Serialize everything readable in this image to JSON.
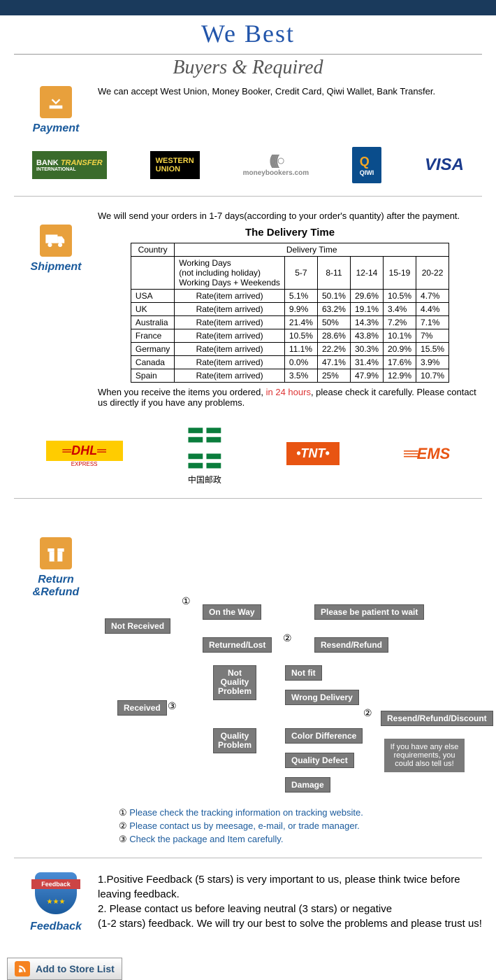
{
  "header": {
    "title": "We   Best",
    "subtitle": "Buyers & Required"
  },
  "payment": {
    "label": "Payment",
    "text": "We can accept West Union, Money Booker, Credit Card, Qiwi Wallet, Bank Transfer.",
    "logos": {
      "bank1": "BANK",
      "bank2": "TRANSFER",
      "bank3": "INTERNATIONAL",
      "wu1": "WESTERN",
      "wu2": "UNION",
      "mb": "moneybookers.com",
      "qiwi": "Q",
      "qiwi2": "QIWI",
      "visa": "VISA"
    }
  },
  "shipment": {
    "label": "Shipment",
    "intro": "We will send your orders in 1-7 days(according to your order's quantity) after the payment.",
    "table_title": "The Delivery Time",
    "headers": {
      "country": "Country",
      "dt": "Delivery Time"
    },
    "sub": {
      "wd1": "Working Days",
      "wd2": "(not including holiday)",
      "wd3": "Working Days + Weekends"
    },
    "cols": [
      "5-7",
      "8-11",
      "12-14",
      "15-19",
      "20-22"
    ],
    "rate_label": "Rate(item arrived)",
    "rows": [
      {
        "c": "USA",
        "v": [
          "5.1%",
          "50.1%",
          "29.6%",
          "10.5%",
          "4.7%"
        ]
      },
      {
        "c": "UK",
        "v": [
          "9.9%",
          "63.2%",
          "19.1%",
          "3.4%",
          "4.4%"
        ]
      },
      {
        "c": "Australia",
        "v": [
          "21.4%",
          "50%",
          "14.3%",
          "7.2%",
          "7.1%"
        ]
      },
      {
        "c": "France",
        "v": [
          "10.5%",
          "28.6%",
          "43.8%",
          "10.1%",
          "7%"
        ]
      },
      {
        "c": "Germany",
        "v": [
          "11.1%",
          "22.2%",
          "30.3%",
          "20.9%",
          "15.5%"
        ]
      },
      {
        "c": "Canada",
        "v": [
          "0.0%",
          "47.1%",
          "31.4%",
          "17.6%",
          "3.9%"
        ]
      },
      {
        "c": "Spain",
        "v": [
          "3.5%",
          "25%",
          "47.9%",
          "12.9%",
          "10.7%"
        ]
      }
    ],
    "note1": "When you receive the items you ordered, ",
    "note2": "in 24 hours",
    "note3": ", please check it carefully. Please contact us directly if you have any problems.",
    "carriers": {
      "dhl": "DHL",
      "dhl_sub": "EXPRESS",
      "cp": "中国邮政",
      "tnt": "TNT",
      "ems": "EMS"
    }
  },
  "return": {
    "label": "Return &Refund",
    "nodes": {
      "not_received": "Not Received",
      "received": "Received",
      "on_way": "On the Way",
      "returned": "Returned/Lost",
      "patient": "Please be patient to wait",
      "resend1": "Resend/Refund",
      "nqp1": "Not",
      "nqp2": "Quality",
      "nqp3": "Problem",
      "qp1": "Quality",
      "qp2": "Problem",
      "not_fit": "Not fit",
      "wrong": "Wrong Delivery",
      "color": "Color Difference",
      "defect": "Quality Defect",
      "damage": "Damage",
      "rrd": "Resend/Refund/Discount",
      "speech": "If you have any else requirements, you could also tell us!",
      "n1": "①",
      "n2": "②",
      "n3": "③"
    },
    "legend": {
      "l1a": "① ",
      "l1b": "Please check the tracking information on tracking website.",
      "l2a": "② ",
      "l2b": "Please contact us by meesage, e-mail, or trade manager.",
      "l3a": "③ ",
      "l3b": "Check the package and Item carefully."
    }
  },
  "feedback": {
    "label": "Feedback",
    "badge": "Feedback",
    "text1": "1.Positive Feedback (5 stars) is very important to us, please think twice before leaving feedback.",
    "text2": "2. Please contact us before leaving neutral (3 stars) or negative",
    "text3": "(1-2 stars) feedback. We will try our best to solve the problems and please trust us!"
  },
  "store_button": "Add to Store List"
}
